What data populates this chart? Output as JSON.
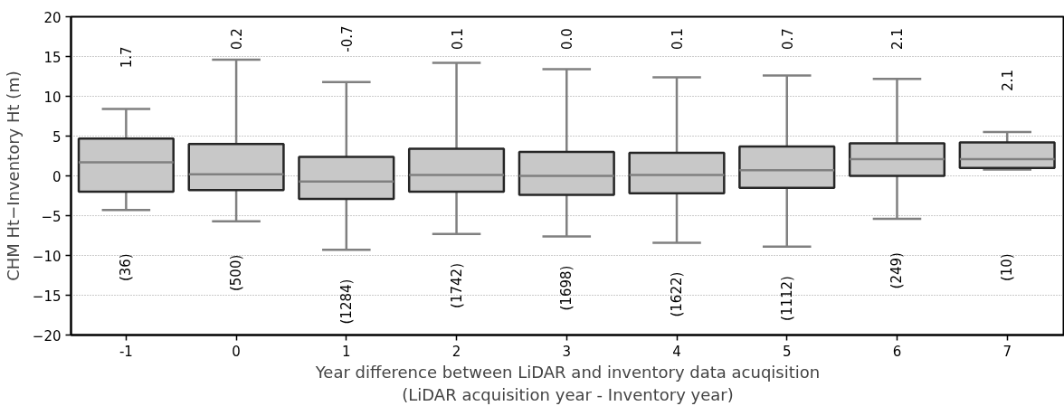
{
  "chart_data": {
    "type": "box",
    "xlabel": "Year difference between LiDAR and inventory data acuqisition\n(LiDAR acquisition year - Inventory year)",
    "ylabel": "CHM Ht−Inventory Ht (m)",
    "categories": [
      "-1",
      "0",
      "1",
      "2",
      "3",
      "4",
      "5",
      "6",
      "7"
    ],
    "color": "#c8c8c8",
    "boxes": [
      {
        "low": -4.3,
        "q1": -2.0,
        "median": 1.7,
        "q3": 4.7,
        "high": 8.4
      },
      {
        "low": -5.7,
        "q1": -1.8,
        "median": 0.2,
        "q3": 4.0,
        "high": 14.6
      },
      {
        "low": -9.3,
        "q1": -2.9,
        "median": -0.7,
        "q3": 2.4,
        "high": 11.8
      },
      {
        "low": -7.3,
        "q1": -2.0,
        "median": 0.1,
        "q3": 3.4,
        "high": 14.2
      },
      {
        "low": -7.6,
        "q1": -2.4,
        "median": 0.0,
        "q3": 3.0,
        "high": 13.4
      },
      {
        "low": -8.4,
        "q1": -2.2,
        "median": 0.1,
        "q3": 2.9,
        "high": 12.4
      },
      {
        "low": -8.9,
        "q1": -1.5,
        "median": 0.7,
        "q3": 3.7,
        "high": 12.6
      },
      {
        "low": -5.4,
        "q1": 0.0,
        "median": 2.1,
        "q3": 4.1,
        "high": 12.2
      },
      {
        "low": 0.8,
        "q1": 1.0,
        "median": 2.1,
        "q3": 4.2,
        "high": 5.5
      }
    ],
    "ylim": [
      -20,
      20
    ],
    "yticks": [
      -20,
      -15,
      -10,
      -5,
      0,
      5,
      10,
      15,
      20
    ],
    "grid": "y",
    "annotations": [
      "1.7",
      "0.2",
      "-0.7",
      "0.1",
      "0.0",
      "0.1",
      "0.7",
      "2.1",
      "2.1",
      "(36)",
      "(500)",
      "(1284)",
      "(1742)",
      "(1698)",
      "(1622)",
      "(1112)",
      "(249)",
      "(10)"
    ]
  }
}
